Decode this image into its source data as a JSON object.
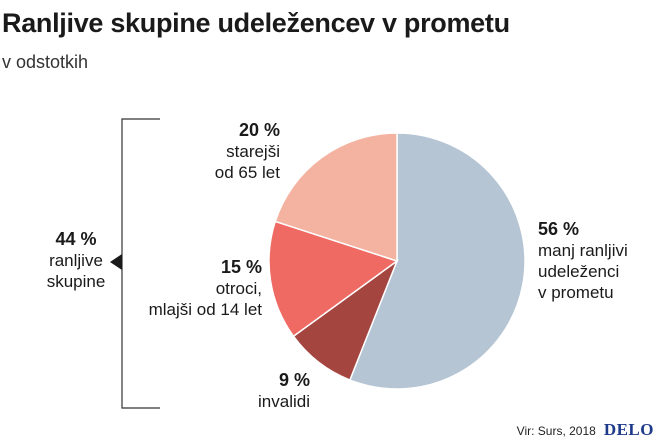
{
  "header": {
    "title": "Ranljive skupine udeležencev v prometu",
    "subtitle": "v odstotkih"
  },
  "group": {
    "value": "44 %",
    "label": "ranljive\nskupine"
  },
  "chart_data": {
    "type": "pie",
    "slices": [
      {
        "value": 56,
        "pct_label": "56 %",
        "label": "manj ranljivi\nudeleženci\nv prometu",
        "color": "#b6c5d4"
      },
      {
        "value": 9,
        "pct_label": "9 %",
        "label": "invalidi",
        "color": "#a44540"
      },
      {
        "value": 15,
        "pct_label": "15 %",
        "label": "otroci,\nmlajši od 14 let",
        "color": "#ef6a63"
      },
      {
        "value": 20,
        "pct_label": "20 %",
        "label": "starejši\nod 65 let",
        "color": "#f4b3a1"
      }
    ]
  },
  "footer": {
    "source": "Vir: Surs, 2018",
    "logo": "DELO"
  }
}
